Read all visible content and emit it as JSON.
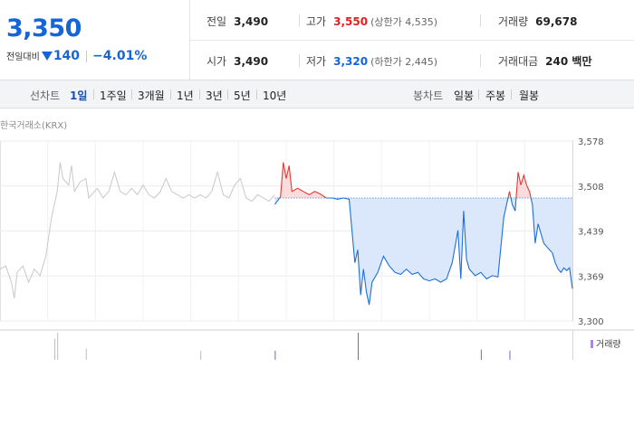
{
  "quote": {
    "price": "3,350",
    "change_label": "전일대비",
    "change": "140",
    "change_pct": "−4.01%",
    "stats": {
      "prev_label": "전일",
      "prev": "3,490",
      "open_label": "시가",
      "open": "3,490",
      "high_label": "고가",
      "high": "3,550",
      "upper_limit": "(상한가 4,535)",
      "low_label": "저가",
      "low": "3,320",
      "lower_limit": "(하한가 2,445)",
      "volume_label": "거래량",
      "volume": "69,678",
      "value_label": "거래대금",
      "value": "240 백만"
    },
    "colors": {
      "down": "#1565d8",
      "up": "#e02020"
    }
  },
  "tabs": {
    "line_label": "선차트",
    "line_periods": [
      "1일",
      "1주일",
      "3개월",
      "1년",
      "3년",
      "5년",
      "10년"
    ],
    "active": "1일",
    "candle_label": "봉차트",
    "candle_periods": [
      "일봉",
      "주봉",
      "월봉"
    ]
  },
  "source": "한국거래소(KRX)",
  "chart_data": {
    "type": "line",
    "yticks": [
      "3,578",
      "3,508",
      "3,439",
      "3,369",
      "3,300"
    ],
    "ylim": [
      3300,
      3578
    ],
    "reference_price": 3490,
    "grid": true,
    "series": [
      {
        "name": "",
        "color": "#c8c8c8",
        "points": [
          [
            0,
            3380
          ],
          [
            0.01,
            3385
          ],
          [
            0.02,
            3360
          ],
          [
            0.025,
            3335
          ],
          [
            0.03,
            3375
          ],
          [
            0.04,
            3385
          ],
          [
            0.05,
            3360
          ],
          [
            0.06,
            3380
          ],
          [
            0.07,
            3370
          ],
          [
            0.08,
            3400
          ],
          [
            0.09,
            3460
          ],
          [
            0.1,
            3500
          ],
          [
            0.105,
            3545
          ],
          [
            0.11,
            3520
          ],
          [
            0.12,
            3510
          ],
          [
            0.125,
            3540
          ],
          [
            0.13,
            3500
          ],
          [
            0.14,
            3515
          ],
          [
            0.15,
            3520
          ],
          [
            0.155,
            3490
          ],
          [
            0.16,
            3495
          ],
          [
            0.17,
            3505
          ],
          [
            0.18,
            3490
          ],
          [
            0.19,
            3500
          ],
          [
            0.2,
            3530
          ],
          [
            0.21,
            3500
          ],
          [
            0.22,
            3495
          ],
          [
            0.23,
            3505
          ],
          [
            0.24,
            3495
          ],
          [
            0.25,
            3510
          ],
          [
            0.26,
            3495
          ],
          [
            0.27,
            3490
          ],
          [
            0.28,
            3500
          ],
          [
            0.29,
            3520
          ],
          [
            0.3,
            3500
          ],
          [
            0.31,
            3495
          ],
          [
            0.32,
            3490
          ],
          [
            0.33,
            3495
          ],
          [
            0.34,
            3490
          ],
          [
            0.35,
            3495
          ],
          [
            0.36,
            3490
          ],
          [
            0.37,
            3500
          ],
          [
            0.38,
            3530
          ],
          [
            0.39,
            3495
          ],
          [
            0.4,
            3490
          ],
          [
            0.41,
            3510
          ],
          [
            0.42,
            3520
          ],
          [
            0.43,
            3490
          ],
          [
            0.44,
            3485
          ],
          [
            0.45,
            3495
          ],
          [
            0.46,
            3490
          ],
          [
            0.47,
            3485
          ],
          [
            0.48,
            3495
          ]
        ]
      },
      {
        "name": "",
        "color": "#1e6fd9",
        "points": [
          [
            0.48,
            3480
          ],
          [
            0.49,
            3492
          ],
          [
            0.495,
            3545
          ],
          [
            0.5,
            3520
          ],
          [
            0.505,
            3540
          ],
          [
            0.51,
            3500
          ],
          [
            0.52,
            3505
          ],
          [
            0.53,
            3500
          ],
          [
            0.54,
            3495
          ],
          [
            0.55,
            3500
          ],
          [
            0.56,
            3496
          ],
          [
            0.57,
            3490
          ],
          [
            0.58,
            3490
          ],
          [
            0.59,
            3488
          ],
          [
            0.6,
            3490
          ],
          [
            0.61,
            3488
          ],
          [
            0.62,
            3390
          ],
          [
            0.625,
            3410
          ],
          [
            0.63,
            3340
          ],
          [
            0.635,
            3380
          ],
          [
            0.64,
            3345
          ],
          [
            0.645,
            3325
          ],
          [
            0.65,
            3360
          ],
          [
            0.66,
            3375
          ],
          [
            0.67,
            3400
          ],
          [
            0.68,
            3385
          ],
          [
            0.69,
            3375
          ],
          [
            0.7,
            3372
          ],
          [
            0.71,
            3380
          ],
          [
            0.72,
            3372
          ],
          [
            0.73,
            3375
          ],
          [
            0.74,
            3365
          ],
          [
            0.75,
            3362
          ],
          [
            0.76,
            3365
          ],
          [
            0.77,
            3360
          ],
          [
            0.78,
            3365
          ],
          [
            0.79,
            3390
          ],
          [
            0.8,
            3440
          ],
          [
            0.805,
            3365
          ],
          [
            0.81,
            3470
          ],
          [
            0.815,
            3395
          ],
          [
            0.82,
            3380
          ],
          [
            0.83,
            3370
          ],
          [
            0.84,
            3375
          ],
          [
            0.85,
            3365
          ],
          [
            0.86,
            3370
          ],
          [
            0.87,
            3368
          ],
          [
            0.88,
            3460
          ],
          [
            0.885,
            3480
          ],
          [
            0.89,
            3500
          ],
          [
            0.895,
            3480
          ],
          [
            0.9,
            3470
          ],
          [
            0.905,
            3530
          ],
          [
            0.91,
            3510
          ],
          [
            0.915,
            3525
          ],
          [
            0.92,
            3510
          ],
          [
            0.925,
            3500
          ],
          [
            0.93,
            3480
          ],
          [
            0.935,
            3420
          ],
          [
            0.94,
            3450
          ],
          [
            0.95,
            3420
          ],
          [
            0.96,
            3410
          ],
          [
            0.965,
            3405
          ],
          [
            0.97,
            3390
          ],
          [
            0.975,
            3380
          ],
          [
            0.98,
            3375
          ],
          [
            0.985,
            3382
          ],
          [
            0.99,
            3378
          ],
          [
            0.995,
            3382
          ],
          [
            1.0,
            3350
          ]
        ]
      }
    ],
    "volume_label": "거래량",
    "volume_bars": [
      [
        0.095,
        0.7
      ],
      [
        0.1,
        1.0
      ],
      [
        0.15,
        0.2
      ],
      [
        0.35,
        0.1
      ],
      [
        0.48,
        0.1
      ],
      [
        0.625,
        1.0
      ],
      [
        0.84,
        0.15
      ],
      [
        0.89,
        0.1
      ]
    ]
  }
}
